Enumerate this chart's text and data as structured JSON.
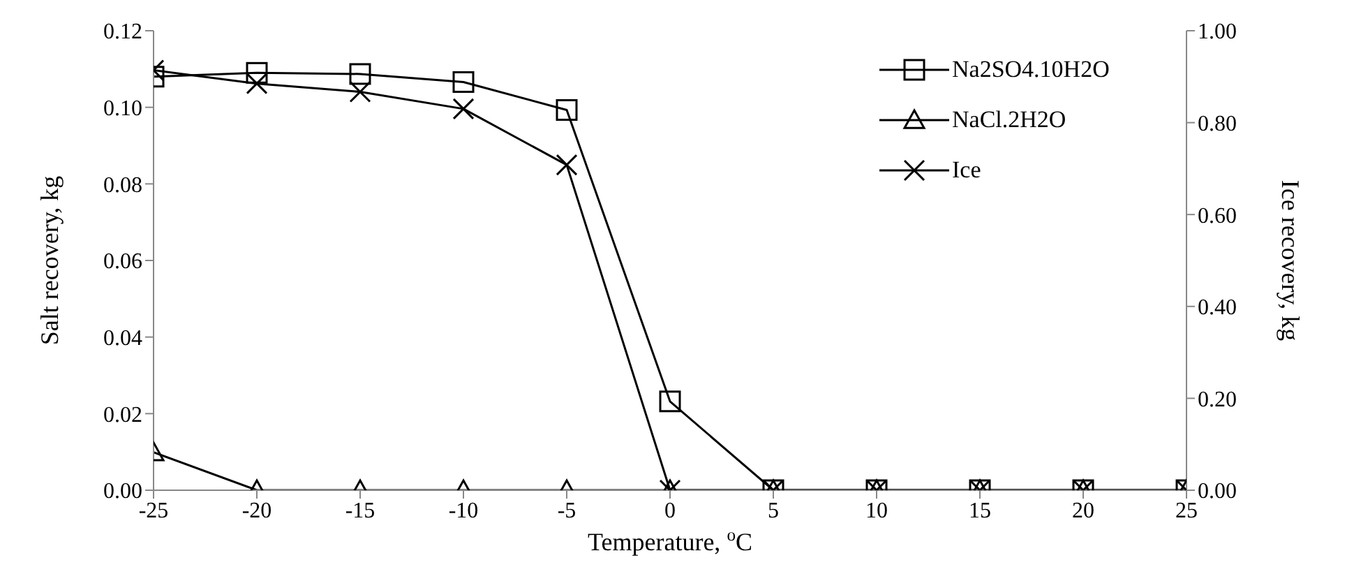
{
  "chart_data": {
    "type": "line",
    "xlabel": "Temperature, $^{o}$C",
    "ylabel": "Salt recovery, kg",
    "y2label": "Ice recovery, kg",
    "x": [
      -25,
      -20,
      -15,
      -10,
      -5,
      0,
      5,
      10,
      15,
      20,
      25
    ],
    "series": [
      {
        "name": "Na2SO4.10H2O",
        "color": "#000000",
        "marker": "square",
        "values": [
          0.108,
          0.109,
          0.1087,
          0.1066,
          0.0993,
          0.0232,
          0,
          0,
          0,
          0,
          0
        ]
      },
      {
        "name": "NaCl.2H2O",
        "color": "#000000",
        "marker": "triangle",
        "values": [
          0.0099,
          0,
          0,
          0,
          0,
          0,
          0,
          0,
          0,
          0,
          0
        ]
      },
      {
        "name": "Ice",
        "color": "#000000",
        "marker": "cross",
        "axis": "y2",
        "values": [
          0.914,
          0.885,
          0.867,
          0.83,
          0.708,
          0,
          0,
          0,
          0,
          0,
          0
        ]
      }
    ],
    "xlim": [
      -25,
      25
    ],
    "xticks": [
      -25,
      -20,
      -15,
      -10,
      -5,
      0,
      5,
      10,
      15,
      20,
      25
    ],
    "ylim": [
      0,
      0.12
    ],
    "yticks": [
      {
        "value": 0,
        "label": "0.00"
      },
      {
        "value": 0.02,
        "label": "0.02"
      },
      {
        "value": 0.04,
        "label": "0.04"
      },
      {
        "value": 0.06,
        "label": "0.06"
      },
      {
        "value": 0.08,
        "label": "0.08"
      },
      {
        "value": 0.1,
        "label": "0.10"
      },
      {
        "value": 0.12,
        "label": "0.12"
      }
    ],
    "y2lim": [
      0,
      1
    ],
    "y2ticks": [
      {
        "value": 0,
        "label": "0.00"
      },
      {
        "value": 0.2,
        "label": "0.20"
      },
      {
        "value": 0.4,
        "label": "0.40"
      },
      {
        "value": 0.6,
        "label": "0.60"
      },
      {
        "value": 0.8,
        "label": "0.80"
      },
      {
        "value": 1,
        "label": "1.00"
      }
    ],
    "grid": false,
    "legend": "top right",
    "line_style": "solid"
  }
}
